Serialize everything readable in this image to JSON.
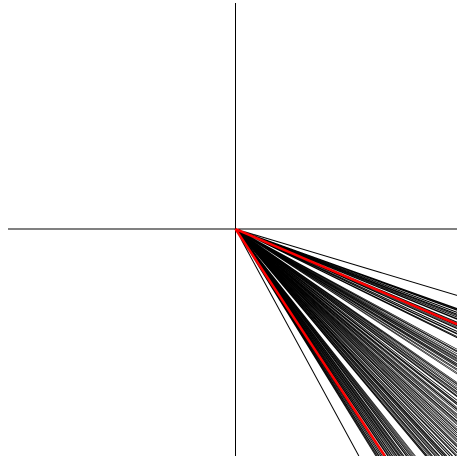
{
  "colors": {
    "background": "#ffffff",
    "axis": "#000000",
    "rays": "#000000",
    "highlight": "#ff0000"
  },
  "diagram": {
    "axes": [
      "horizontal",
      "vertical"
    ],
    "ray_count": 220,
    "highlighted_ray_count": 2,
    "quadrant": "lower-right"
  }
}
